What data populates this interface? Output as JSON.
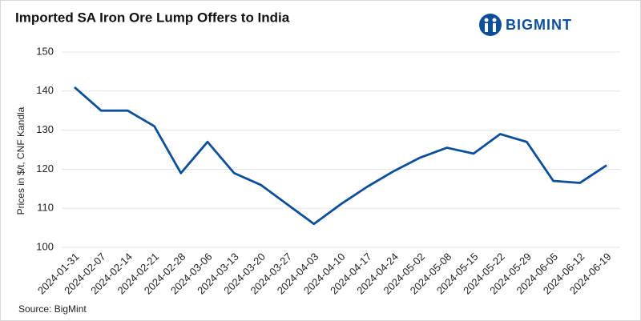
{
  "logo_text": "BIGMINT",
  "chart_data": {
    "type": "line",
    "title": "Imported SA Iron Ore Lump Offers to India",
    "y_label": "Prices in $/t, CNF Kandla",
    "source": "Source: BigMint",
    "categories": [
      "2024-01-31",
      "2024-02-07",
      "2024-02-14",
      "2024-02-21",
      "2024-02-28",
      "2024-03-06",
      "2024-03-13",
      "2024-03-20",
      "2024-03-27",
      "2024-04-03",
      "2024-04-10",
      "2024-04-17",
      "2024-04-24",
      "2024-05-02",
      "2024-05-08",
      "2024-05-15",
      "2024-05-22",
      "2024-05-29",
      "2024-06-05",
      "2024-06-12",
      "2024-06-19"
    ],
    "series": [
      {
        "name": "Imported SA Iron Ore Lump",
        "color": "#0b4f9c",
        "values": [
          141,
          135,
          135,
          131,
          119,
          127,
          119,
          116,
          111,
          106,
          111,
          115.5,
          119.5,
          123,
          125.5,
          124,
          129,
          127,
          117,
          116.5,
          121
        ]
      }
    ],
    "ylim": [
      100,
      150
    ],
    "yticks": [
      100,
      110,
      120,
      130,
      140,
      150
    ],
    "grid": true
  }
}
